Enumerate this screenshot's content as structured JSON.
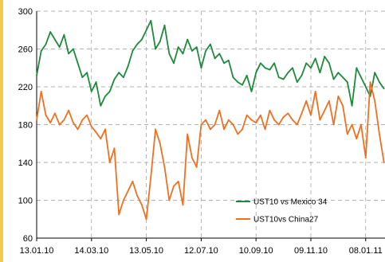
{
  "chart_data": {
    "type": "line",
    "title": "",
    "xlabel": "",
    "ylabel": "",
    "ylim": [
      60,
      300
    ],
    "yticks": [
      60,
      100,
      140,
      180,
      220,
      260,
      300
    ],
    "xlim": [
      "2010-01-13",
      "2011-01-30"
    ],
    "xtick_labels": [
      "13.01.10",
      "14.03.10",
      "13.05.10",
      "12.07.10",
      "10.09.10",
      "09.11.10",
      "08.01.11"
    ],
    "xticks": [
      "2010-01-13",
      "2010-03-14",
      "2010-05-13",
      "2010-07-12",
      "2010-09-10",
      "2010-11-09",
      "2011-01-08"
    ],
    "grid": true,
    "legend_placement": "bottom-right",
    "series": [
      {
        "name": "UST10 vs Mexico 34",
        "color": "#1e8a3c",
        "x": [
          "2010-01-13",
          "2010-01-18",
          "2010-01-23",
          "2010-01-28",
          "2010-02-02",
          "2010-02-07",
          "2010-02-12",
          "2010-02-17",
          "2010-02-22",
          "2010-02-27",
          "2010-03-04",
          "2010-03-09",
          "2010-03-14",
          "2010-03-19",
          "2010-03-24",
          "2010-03-29",
          "2010-04-03",
          "2010-04-08",
          "2010-04-13",
          "2010-04-18",
          "2010-04-23",
          "2010-04-28",
          "2010-05-03",
          "2010-05-08",
          "2010-05-13",
          "2010-05-18",
          "2010-05-23",
          "2010-05-28",
          "2010-06-02",
          "2010-06-07",
          "2010-06-12",
          "2010-06-17",
          "2010-06-22",
          "2010-06-27",
          "2010-07-02",
          "2010-07-07",
          "2010-07-12",
          "2010-07-17",
          "2010-07-22",
          "2010-07-27",
          "2010-08-01",
          "2010-08-06",
          "2010-08-11",
          "2010-08-16",
          "2010-08-21",
          "2010-08-26",
          "2010-08-31",
          "2010-09-05",
          "2010-09-10",
          "2010-09-15",
          "2010-09-20",
          "2010-09-25",
          "2010-09-30",
          "2010-10-05",
          "2010-10-10",
          "2010-10-15",
          "2010-10-20",
          "2010-10-25",
          "2010-10-30",
          "2010-11-04",
          "2010-11-09",
          "2010-11-14",
          "2010-11-19",
          "2010-11-24",
          "2010-11-29",
          "2010-12-04",
          "2010-12-09",
          "2010-12-14",
          "2010-12-19",
          "2010-12-24",
          "2010-12-29",
          "2011-01-03",
          "2011-01-08",
          "2011-01-13",
          "2011-01-18",
          "2011-01-23",
          "2011-01-28"
        ],
        "values": [
          232,
          258,
          265,
          278,
          270,
          262,
          275,
          255,
          260,
          245,
          230,
          235,
          215,
          225,
          200,
          210,
          215,
          228,
          235,
          230,
          242,
          258,
          265,
          270,
          280,
          290,
          260,
          268,
          285,
          255,
          245,
          262,
          255,
          270,
          258,
          262,
          240,
          258,
          265,
          250,
          255,
          245,
          248,
          230,
          225,
          222,
          232,
          215,
          235,
          245,
          240,
          238,
          245,
          230,
          228,
          235,
          240,
          225,
          232,
          245,
          240,
          250,
          235,
          252,
          245,
          228,
          235,
          230,
          225,
          200,
          240,
          230,
          220,
          210,
          235,
          225,
          218
        ]
      },
      {
        "name": "UST10vs China27",
        "color": "#f07020",
        "x": [
          "2010-01-13",
          "2010-01-18",
          "2010-01-23",
          "2010-01-28",
          "2010-02-02",
          "2010-02-07",
          "2010-02-12",
          "2010-02-17",
          "2010-02-22",
          "2010-02-27",
          "2010-03-04",
          "2010-03-09",
          "2010-03-14",
          "2010-03-19",
          "2010-03-24",
          "2010-03-29",
          "2010-04-03",
          "2010-04-08",
          "2010-04-13",
          "2010-04-18",
          "2010-04-23",
          "2010-04-28",
          "2010-05-03",
          "2010-05-08",
          "2010-05-13",
          "2010-05-18",
          "2010-05-23",
          "2010-05-28",
          "2010-06-02",
          "2010-06-07",
          "2010-06-12",
          "2010-06-17",
          "2010-06-22",
          "2010-06-27",
          "2010-07-02",
          "2010-07-07",
          "2010-07-12",
          "2010-07-17",
          "2010-07-22",
          "2010-07-27",
          "2010-08-01",
          "2010-08-06",
          "2010-08-11",
          "2010-08-16",
          "2010-08-21",
          "2010-08-26",
          "2010-08-31",
          "2010-09-05",
          "2010-09-10",
          "2010-09-15",
          "2010-09-20",
          "2010-09-25",
          "2010-09-30",
          "2010-10-05",
          "2010-10-10",
          "2010-10-15",
          "2010-10-20",
          "2010-10-25",
          "2010-10-30",
          "2010-11-04",
          "2010-11-09",
          "2010-11-14",
          "2010-11-19",
          "2010-11-24",
          "2010-11-29",
          "2010-12-04",
          "2010-12-09",
          "2010-12-14",
          "2010-12-19",
          "2010-12-24",
          "2010-12-29",
          "2011-01-03",
          "2011-01-08",
          "2011-01-13",
          "2011-01-18",
          "2011-01-23",
          "2011-01-28"
        ],
        "values": [
          185,
          215,
          190,
          182,
          192,
          180,
          185,
          195,
          182,
          175,
          185,
          190,
          178,
          172,
          165,
          175,
          140,
          155,
          85,
          100,
          110,
          120,
          105,
          95,
          80,
          125,
          175,
          160,
          135,
          100,
          115,
          120,
          95,
          170,
          145,
          135,
          180,
          185,
          175,
          180,
          195,
          175,
          185,
          180,
          170,
          175,
          190,
          185,
          182,
          190,
          175,
          195,
          185,
          180,
          188,
          192,
          185,
          180,
          192,
          205,
          190,
          215,
          185,
          195,
          205,
          180,
          210,
          200,
          170,
          180,
          165,
          180,
          145,
          225,
          205,
          170,
          140
        ]
      }
    ]
  }
}
